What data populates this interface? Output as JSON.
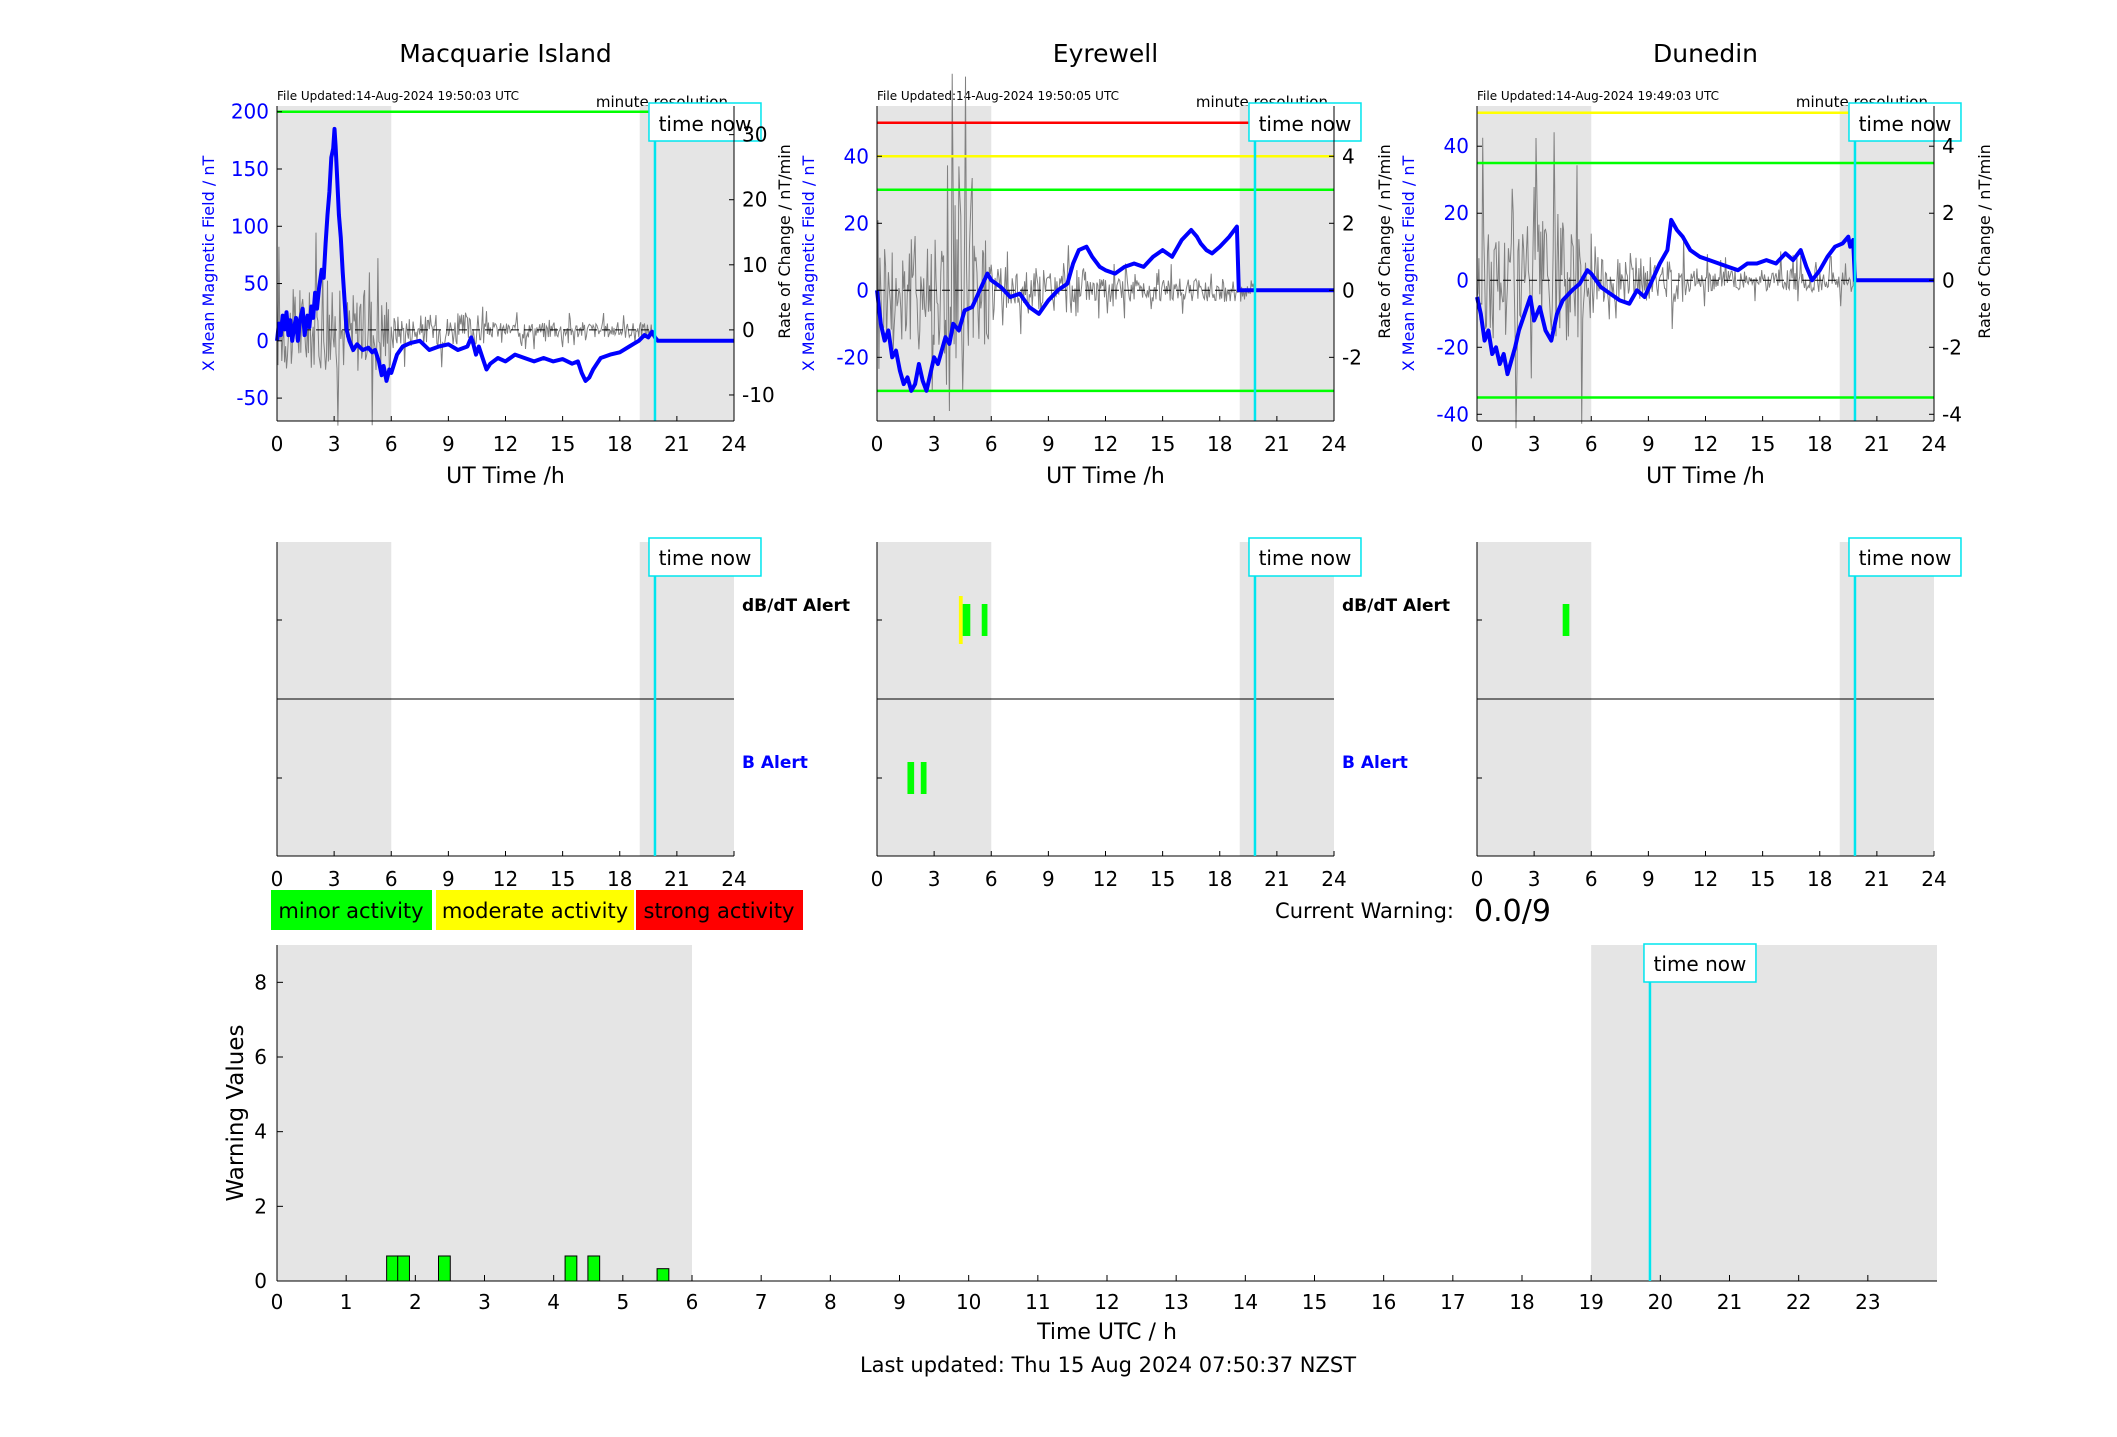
{
  "colors": {
    "background": "#ffffff",
    "night_shade": "#e5e5e5",
    "x_field": "#0000ff",
    "rate_of_change": "#808080",
    "time_now": "#00e5ee",
    "minor": "#00ff00",
    "moderate": "#ffff00",
    "strong": "#ff0000",
    "axis": "#000000"
  },
  "now_hour": 19.85,
  "time_now_label": "time now",
  "minute_resolution_label": "minute resolution",
  "xlabel_station": "UT Time /h",
  "ylabel_left": "X Mean Magnetic Field / nT",
  "ylabel_right": "Rate of Change / nT/min",
  "station_xticks": [
    0,
    3,
    6,
    9,
    12,
    15,
    18,
    21,
    24
  ],
  "dbdt_alert_label": "dB/dT Alert",
  "b_alert_label": "B Alert",
  "legend": [
    {
      "label": "minor activity",
      "color": "#00ff00"
    },
    {
      "label": "moderate activity",
      "color": "#ffff00"
    },
    {
      "label": "strong activity",
      "color": "#ff0000"
    }
  ],
  "current_warning_label": "Current Warning:",
  "current_warning_value": "0.0/9",
  "stations": [
    {
      "name": "Macquarie Island",
      "file_updated": "File Updated:14-Aug-2024 19:50:03 UTC",
      "shade": [
        [
          0,
          6
        ],
        [
          19.05,
          24
        ]
      ],
      "ylim": [
        -70,
        205
      ],
      "yticks": [
        -50,
        0,
        50,
        100,
        150,
        200
      ],
      "rate_ylim": [
        -14,
        34.4
      ],
      "rate_yticks": [
        -10,
        0,
        10,
        20,
        30
      ],
      "thresholds": [
        {
          "value": 200,
          "color": "#00ff00"
        }
      ],
      "x_trace": [
        [
          0,
          0
        ],
        [
          0.1,
          15
        ],
        [
          0.2,
          5
        ],
        [
          0.3,
          22
        ],
        [
          0.4,
          10
        ],
        [
          0.5,
          25
        ],
        [
          0.6,
          5
        ],
        [
          0.7,
          18
        ],
        [
          0.8,
          0
        ],
        [
          0.9,
          12
        ],
        [
          1,
          20
        ],
        [
          1.1,
          0
        ],
        [
          1.2,
          18
        ],
        [
          1.35,
          28
        ],
        [
          1.45,
          5
        ],
        [
          1.6,
          22
        ],
        [
          1.7,
          12
        ],
        [
          1.8,
          30
        ],
        [
          1.9,
          20
        ],
        [
          2,
          42
        ],
        [
          2.1,
          28
        ],
        [
          2.2,
          45
        ],
        [
          2.35,
          62
        ],
        [
          2.45,
          55
        ],
        [
          2.55,
          85
        ],
        [
          2.65,
          110
        ],
        [
          2.75,
          130
        ],
        [
          2.85,
          160
        ],
        [
          2.95,
          168
        ],
        [
          3.02,
          185
        ],
        [
          3.08,
          170
        ],
        [
          3.15,
          145
        ],
        [
          3.25,
          110
        ],
        [
          3.35,
          90
        ],
        [
          3.45,
          60
        ],
        [
          3.55,
          35
        ],
        [
          3.65,
          10
        ],
        [
          3.8,
          0
        ],
        [
          4,
          -8
        ],
        [
          4.2,
          -3
        ],
        [
          4.5,
          -8
        ],
        [
          4.8,
          -6
        ],
        [
          5,
          -10
        ],
        [
          5.15,
          -8
        ],
        [
          5.35,
          -18
        ],
        [
          5.5,
          -30
        ],
        [
          5.6,
          -22
        ],
        [
          5.75,
          -35
        ],
        [
          5.9,
          -25
        ],
        [
          6,
          -28
        ],
        [
          6.3,
          -12
        ],
        [
          6.6,
          -5
        ],
        [
          7,
          -2
        ],
        [
          7.5,
          0
        ],
        [
          8,
          -8
        ],
        [
          8.5,
          -5
        ],
        [
          9,
          -3
        ],
        [
          9.5,
          -8
        ],
        [
          10,
          -5
        ],
        [
          10.2,
          3
        ],
        [
          10.3,
          -2
        ],
        [
          10.45,
          -12
        ],
        [
          10.6,
          -5
        ],
        [
          10.8,
          -15
        ],
        [
          11,
          -25
        ],
        [
          11.2,
          -20
        ],
        [
          11.6,
          -15
        ],
        [
          12,
          -18
        ],
        [
          12.5,
          -12
        ],
        [
          13,
          -15
        ],
        [
          13.5,
          -18
        ],
        [
          14,
          -15
        ],
        [
          14.5,
          -18
        ],
        [
          15,
          -16
        ],
        [
          15.5,
          -20
        ],
        [
          15.8,
          -18
        ],
        [
          16,
          -28
        ],
        [
          16.2,
          -35
        ],
        [
          16.4,
          -32
        ],
        [
          16.6,
          -25
        ],
        [
          16.8,
          -20
        ],
        [
          17,
          -15
        ],
        [
          17.5,
          -12
        ],
        [
          18,
          -10
        ],
        [
          18.5,
          -5
        ],
        [
          19,
          0
        ],
        [
          19.3,
          5
        ],
        [
          19.5,
          3
        ],
        [
          19.7,
          8
        ],
        [
          19.85,
          3
        ],
        [
          20,
          0
        ],
        [
          24,
          0
        ]
      ],
      "b_alerts": [],
      "dbdt_alerts": []
    },
    {
      "name": "Eyrewell",
      "file_updated": "File Updated:14-Aug-2024 19:50:05 UTC",
      "shade": [
        [
          0,
          6
        ],
        [
          19.05,
          24
        ]
      ],
      "ylim": [
        -39,
        55
      ],
      "yticks": [
        -20,
        0,
        20,
        40
      ],
      "rate_ylim": [
        -3.9,
        5.5
      ],
      "rate_yticks": [
        -2,
        0,
        2,
        4
      ],
      "thresholds": [
        {
          "value": 50,
          "color": "#ff0000"
        },
        {
          "value": 40,
          "color": "#ffff00"
        },
        {
          "value": 30,
          "color": "#00ff00"
        },
        {
          "value": -30,
          "color": "#00ff00"
        }
      ],
      "x_trace": [
        [
          0,
          0
        ],
        [
          0.2,
          -10
        ],
        [
          0.4,
          -15
        ],
        [
          0.6,
          -12
        ],
        [
          0.8,
          -20
        ],
        [
          1,
          -18
        ],
        [
          1.2,
          -24
        ],
        [
          1.4,
          -28
        ],
        [
          1.6,
          -26
        ],
        [
          1.8,
          -30
        ],
        [
          2,
          -28
        ],
        [
          2.2,
          -22
        ],
        [
          2.4,
          -27
        ],
        [
          2.6,
          -30
        ],
        [
          2.8,
          -25
        ],
        [
          3,
          -20
        ],
        [
          3.2,
          -22
        ],
        [
          3.4,
          -18
        ],
        [
          3.6,
          -14
        ],
        [
          3.8,
          -16
        ],
        [
          4,
          -10
        ],
        [
          4.3,
          -12
        ],
        [
          4.6,
          -6
        ],
        [
          5,
          -5
        ],
        [
          5.4,
          0
        ],
        [
          5.8,
          5
        ],
        [
          6,
          3
        ],
        [
          6.5,
          1
        ],
        [
          7,
          -2
        ],
        [
          7.5,
          -1
        ],
        [
          8,
          -5
        ],
        [
          8.5,
          -7
        ],
        [
          9,
          -3
        ],
        [
          9.5,
          0
        ],
        [
          10,
          2
        ],
        [
          10.3,
          8
        ],
        [
          10.6,
          12
        ],
        [
          11,
          13
        ],
        [
          11.3,
          10
        ],
        [
          11.7,
          7
        ],
        [
          12,
          6
        ],
        [
          12.5,
          5
        ],
        [
          13,
          7
        ],
        [
          13.5,
          8
        ],
        [
          14,
          7
        ],
        [
          14.5,
          10
        ],
        [
          15,
          12
        ],
        [
          15.5,
          10
        ],
        [
          16,
          15
        ],
        [
          16.5,
          18
        ],
        [
          16.8,
          16
        ],
        [
          17,
          14
        ],
        [
          17.3,
          12
        ],
        [
          17.6,
          11
        ],
        [
          18,
          13
        ],
        [
          18.5,
          16
        ],
        [
          18.9,
          19
        ],
        [
          19,
          0
        ],
        [
          24,
          0
        ]
      ],
      "b_alerts": [
        {
          "start": 1.6,
          "end": 1.95,
          "color": "#00ff00"
        },
        {
          "start": 2.3,
          "end": 2.6,
          "color": "#00ff00"
        }
      ],
      "dbdt_alerts": [
        {
          "start": 4.3,
          "end": 4.5,
          "color": "#ffff00",
          "tall": true
        },
        {
          "start": 4.5,
          "end": 4.9,
          "color": "#00ff00"
        },
        {
          "start": 5.5,
          "end": 5.8,
          "color": "#00ff00"
        }
      ]
    },
    {
      "name": "Dunedin",
      "file_updated": "File Updated:14-Aug-2024 19:49:03 UTC",
      "shade": [
        [
          0,
          6
        ],
        [
          19.05,
          24
        ]
      ],
      "ylim": [
        -42,
        52
      ],
      "yticks": [
        -40,
        -20,
        0,
        20,
        40
      ],
      "rate_ylim": [
        -4.2,
        5.2
      ],
      "rate_yticks": [
        -4,
        -2,
        0,
        2,
        4
      ],
      "thresholds": [
        {
          "value": 50,
          "color": "#ffff00"
        },
        {
          "value": 35,
          "color": "#00ff00"
        },
        {
          "value": -35,
          "color": "#00ff00"
        }
      ],
      "x_trace": [
        [
          0,
          -5
        ],
        [
          0.2,
          -10
        ],
        [
          0.4,
          -18
        ],
        [
          0.6,
          -15
        ],
        [
          0.8,
          -22
        ],
        [
          1,
          -20
        ],
        [
          1.2,
          -25
        ],
        [
          1.4,
          -22
        ],
        [
          1.6,
          -28
        ],
        [
          1.8,
          -24
        ],
        [
          2,
          -20
        ],
        [
          2.2,
          -15
        ],
        [
          2.5,
          -10
        ],
        [
          2.8,
          -5
        ],
        [
          3,
          -12
        ],
        [
          3.3,
          -8
        ],
        [
          3.6,
          -15
        ],
        [
          3.9,
          -18
        ],
        [
          4.2,
          -10
        ],
        [
          4.5,
          -6
        ],
        [
          5,
          -3
        ],
        [
          5.4,
          -1
        ],
        [
          5.8,
          3
        ],
        [
          6,
          2
        ],
        [
          6.5,
          -2
        ],
        [
          7,
          -4
        ],
        [
          7.5,
          -6
        ],
        [
          8,
          -7
        ],
        [
          8.4,
          -3
        ],
        [
          8.8,
          -5
        ],
        [
          9.2,
          0
        ],
        [
          9.6,
          5
        ],
        [
          10,
          9
        ],
        [
          10.2,
          18
        ],
        [
          10.5,
          15
        ],
        [
          10.8,
          13
        ],
        [
          11.2,
          9
        ],
        [
          11.7,
          7
        ],
        [
          12.2,
          6
        ],
        [
          12.7,
          5
        ],
        [
          13.2,
          4
        ],
        [
          13.7,
          3
        ],
        [
          14.2,
          5
        ],
        [
          14.7,
          5
        ],
        [
          15.2,
          6
        ],
        [
          15.7,
          5
        ],
        [
          16.2,
          8
        ],
        [
          16.6,
          6
        ],
        [
          17,
          9
        ],
        [
          17.3,
          4
        ],
        [
          17.6,
          0
        ],
        [
          18,
          3
        ],
        [
          18.4,
          7
        ],
        [
          18.8,
          10
        ],
        [
          19.2,
          11
        ],
        [
          19.5,
          13
        ],
        [
          19.6,
          10
        ],
        [
          19.75,
          12
        ],
        [
          19.85,
          0
        ],
        [
          24,
          0
        ]
      ],
      "b_alerts": [],
      "dbdt_alerts": [
        {
          "start": 4.5,
          "end": 4.85,
          "color": "#00ff00"
        }
      ]
    }
  ],
  "chart_data": [
    {
      "type": "line",
      "title": "Macquarie Island",
      "xlabel": "UT Time /h",
      "ylabel": "X Mean Magnetic Field / nT",
      "xlim": [
        0,
        24
      ],
      "ylim": [
        -70,
        205
      ],
      "series": [
        {
          "name": "X Mean Magnetic Field",
          "x": [
            0,
            1,
            2,
            3,
            3.5,
            4,
            6,
            9,
            10.5,
            12,
            15,
            16.5,
            18,
            19.85
          ],
          "values": [
            0,
            10,
            40,
            180,
            30,
            -5,
            -25,
            -3,
            -10,
            -18,
            -16,
            -30,
            -10,
            3
          ]
        }
      ]
    },
    {
      "type": "line",
      "title": "Eyrewell",
      "xlabel": "UT Time /h",
      "ylabel": "X Mean Magnetic Field / nT",
      "xlim": [
        0,
        24
      ],
      "ylim": [
        -39,
        55
      ],
      "series": [
        {
          "name": "X Mean Magnetic Field",
          "x": [
            0,
            1,
            2,
            3,
            4,
            6,
            8,
            10.5,
            12,
            15,
            16.5,
            18,
            18.9
          ],
          "values": [
            0,
            -18,
            -28,
            -20,
            -10,
            3,
            -5,
            12,
            6,
            12,
            18,
            13,
            19
          ]
        }
      ]
    },
    {
      "type": "line",
      "title": "Dunedin",
      "xlabel": "UT Time /h",
      "ylabel": "X Mean Magnetic Field / nT",
      "xlim": [
        0,
        24
      ],
      "ylim": [
        -42,
        52
      ],
      "series": [
        {
          "name": "X Mean Magnetic Field",
          "x": [
            0,
            1,
            1.6,
            3,
            4.5,
            6,
            8,
            10.2,
            12,
            15,
            17,
            18,
            19.75
          ],
          "values": [
            -5,
            -20,
            -28,
            -12,
            -6,
            2,
            -7,
            18,
            6,
            6,
            9,
            3,
            12
          ]
        }
      ]
    },
    {
      "type": "bar",
      "xlabel": "Time UTC / h",
      "ylabel": "Warning Values",
      "xlim": [
        0,
        24
      ],
      "ylim": [
        0,
        9
      ],
      "xticks": [
        0,
        1,
        2,
        3,
        4,
        5,
        6,
        7,
        8,
        9,
        10,
        11,
        12,
        13,
        14,
        15,
        16,
        17,
        18,
        19,
        20,
        21,
        22,
        23
      ],
      "yticks": [
        0,
        2,
        4,
        6,
        8
      ],
      "x": [
        1.67,
        1.83,
        2.42,
        4.25,
        4.58,
        5.58
      ],
      "values": [
        0.67,
        0.67,
        0.67,
        0.67,
        0.67,
        0.33
      ]
    }
  ],
  "warning_panel": {
    "shade": [
      [
        0,
        6
      ],
      [
        19,
        24
      ]
    ],
    "bar_width": 0.17
  },
  "footer": "Last updated: Thu 15 Aug 2024 07:50:37 NZST"
}
